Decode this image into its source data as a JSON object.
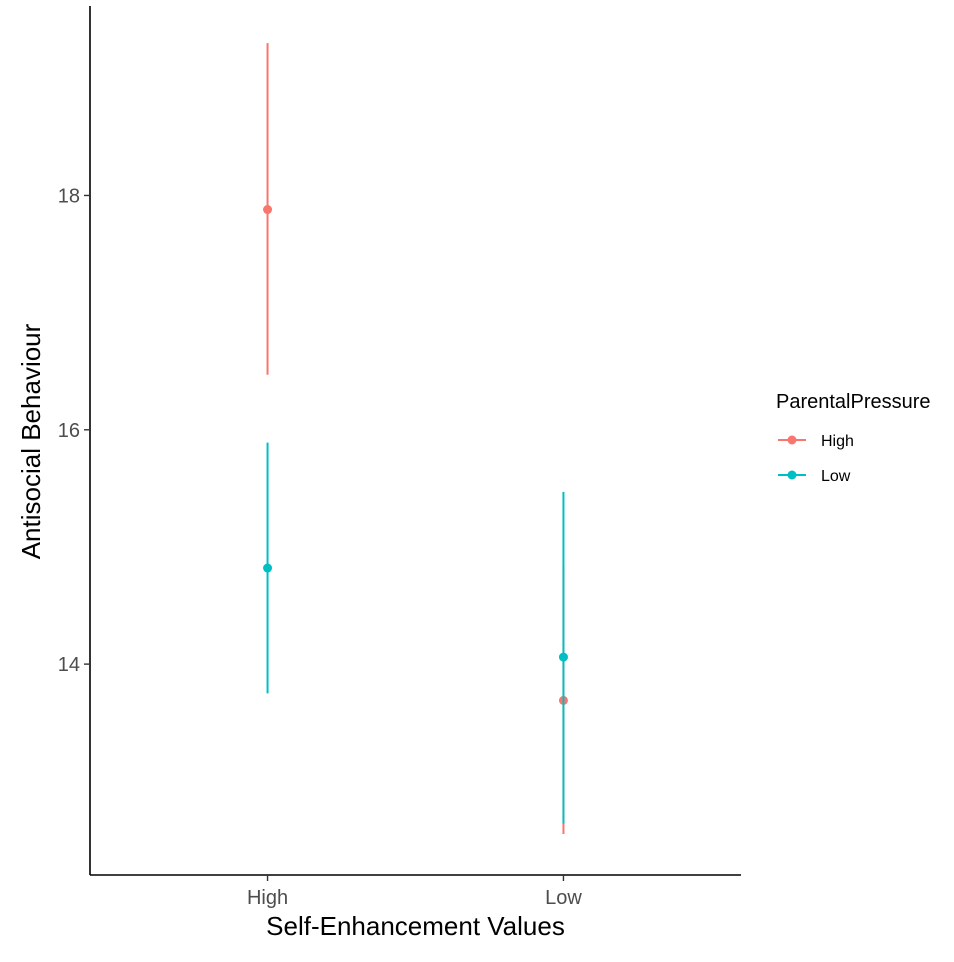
{
  "chart_data": {
    "type": "scatter",
    "subtype": "point-errorbar",
    "xlabel": "Self-Enhancement Values",
    "ylabel": "Antisocial Behaviour",
    "categories": [
      "High",
      "Low"
    ],
    "yticks": [
      14,
      16,
      18
    ],
    "ylim": [
      12.2,
      19.6
    ],
    "grid": false,
    "legend": {
      "title": "ParentalPressure",
      "position": "right"
    },
    "series": [
      {
        "name": "High",
        "color": "#F8766D",
        "points": [
          {
            "x": "High",
            "y": 17.88,
            "ymin": 16.47,
            "ymax": 19.3
          },
          {
            "x": "Low",
            "y": 13.69,
            "ymin": 12.55,
            "ymax": 14.83
          }
        ]
      },
      {
        "name": "Low",
        "color": "#00BFC4",
        "points": [
          {
            "x": "High",
            "y": 14.82,
            "ymin": 13.75,
            "ymax": 15.89
          },
          {
            "x": "Low",
            "y": 14.06,
            "ymin": 12.64,
            "ymax": 15.47
          }
        ]
      }
    ]
  }
}
